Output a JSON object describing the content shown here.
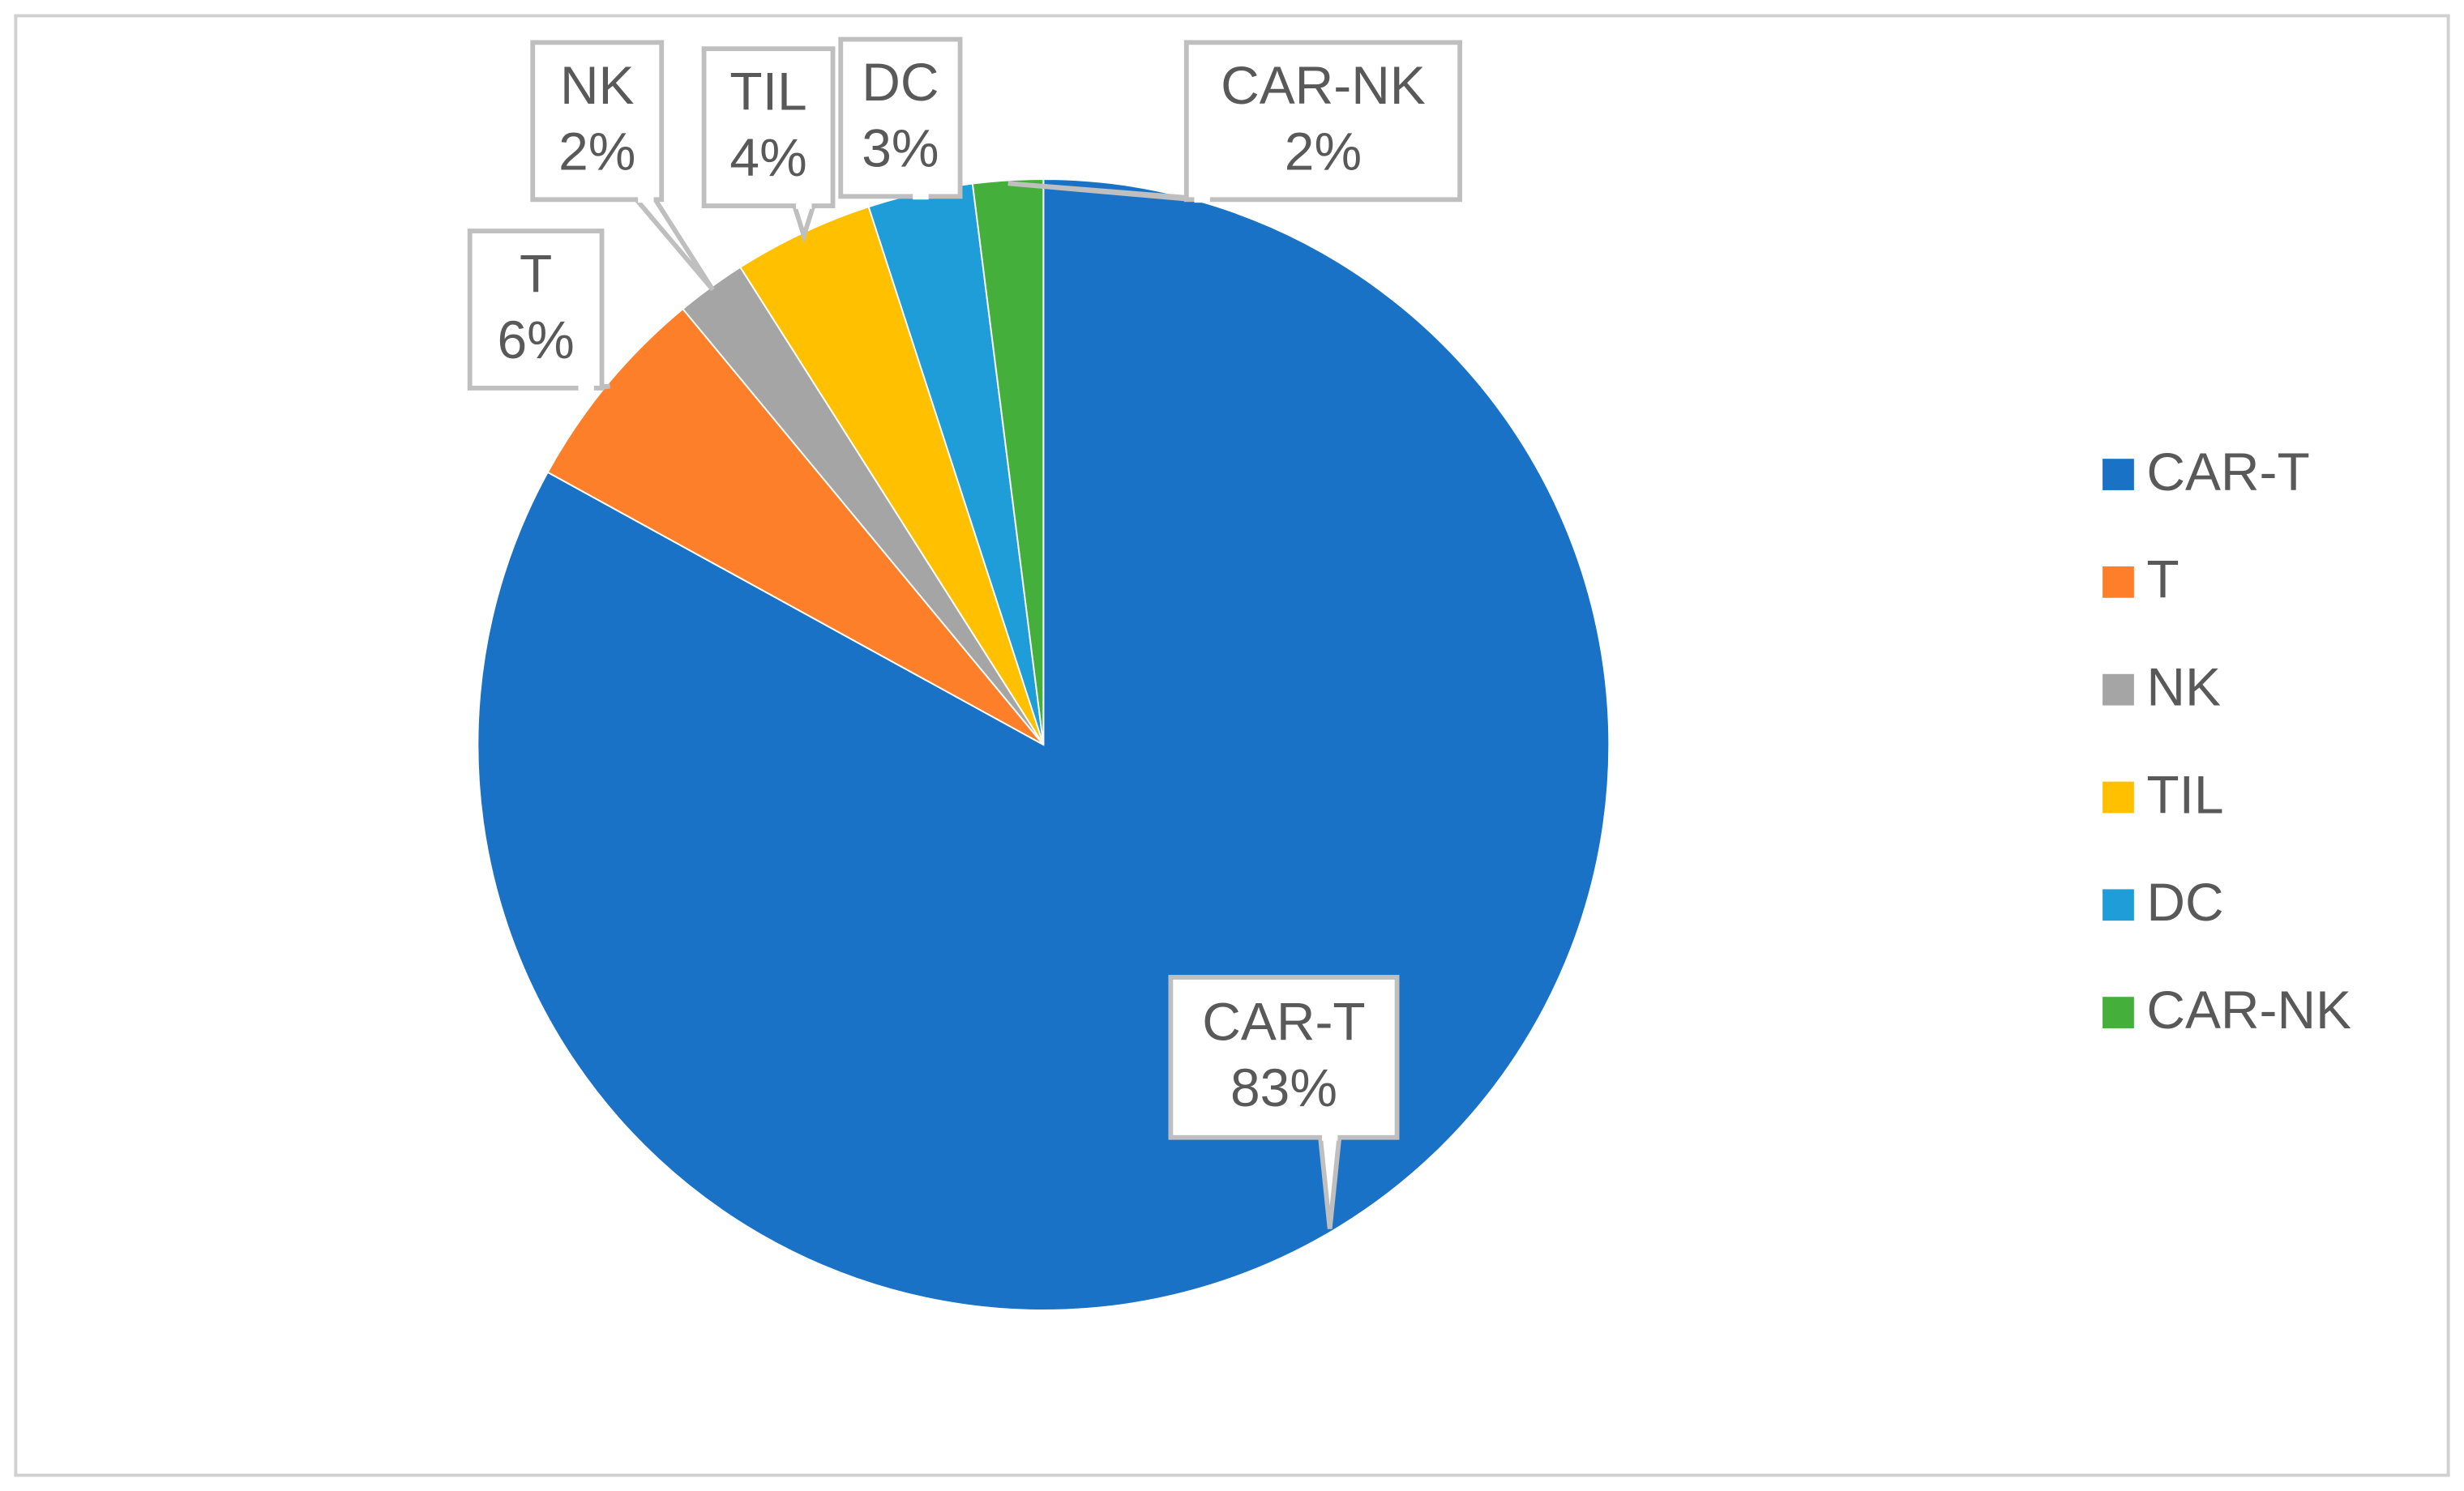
{
  "chart_data": {
    "type": "pie",
    "categories": [
      "CAR-T",
      "T",
      "NK",
      "TIL",
      "DC",
      "CAR-NK"
    ],
    "values": [
      83,
      6,
      2,
      4,
      3,
      2
    ],
    "value_labels": [
      "83%",
      "6%",
      "2%",
      "4%",
      "3%",
      "2%"
    ],
    "colors": [
      "#1a72c6",
      "#fd7f2a",
      "#a5a5a5",
      "#ffc000",
      "#1f9dd9",
      "#44b03b"
    ],
    "legend": "right"
  }
}
